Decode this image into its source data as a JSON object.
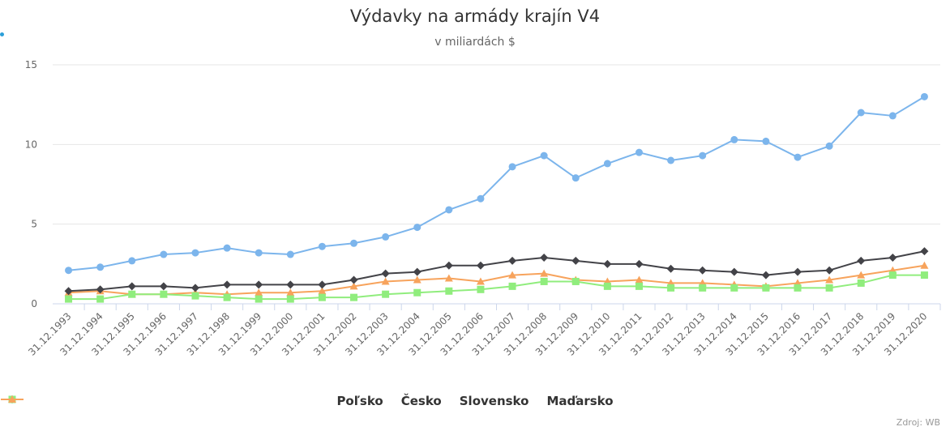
{
  "chart_data": {
    "type": "line",
    "title": "Výdavky na armády krajín V4",
    "subtitle": "v miliardách $",
    "categories": [
      "31.12.1993",
      "31.12.1994",
      "31.12.1995",
      "31.12.1996",
      "31.12.1997",
      "31.12.1998",
      "31.12.1999",
      "31.12.2000",
      "31.12.2001",
      "31.12.2002",
      "31.12.2003",
      "31.12.2004",
      "31.12.2005",
      "31.12.2006",
      "31.12.2007",
      "31.12.2008",
      "31.12.2009",
      "31.12.2010",
      "31.12.2011",
      "31.12.2012",
      "31.12.2013",
      "31.12.2014",
      "31.12.2015",
      "31.12.2016",
      "31.12.2017",
      "31.12.2018",
      "31.12.2019",
      "31.12.2020"
    ],
    "yticks": [
      "0",
      "5",
      "10",
      "15"
    ],
    "ylim": [
      0,
      15
    ],
    "grid": true,
    "legend_position": "bottom",
    "series": [
      {
        "name": "Poľsko",
        "color": "#7cb5ec",
        "marker": "circle",
        "values": [
          2.1,
          2.3,
          2.7,
          3.1,
          3.2,
          3.5,
          3.2,
          3.1,
          3.6,
          3.8,
          4.2,
          4.8,
          5.9,
          6.6,
          8.6,
          9.3,
          7.9,
          8.8,
          9.5,
          9.0,
          9.3,
          10.3,
          10.2,
          9.2,
          9.9,
          12.0,
          11.8,
          13.0
        ]
      },
      {
        "name": "Česko",
        "color": "#434348",
        "marker": "diamond",
        "values": [
          0.8,
          0.9,
          1.1,
          1.1,
          1.0,
          1.2,
          1.2,
          1.2,
          1.2,
          1.5,
          1.9,
          2.0,
          2.4,
          2.4,
          2.7,
          2.9,
          2.7,
          2.5,
          2.5,
          2.2,
          2.1,
          2.0,
          1.8,
          2.0,
          2.1,
          2.7,
          2.9,
          3.3
        ]
      },
      {
        "name": "Slovensko",
        "color": "#90ed7d",
        "marker": "square",
        "values": [
          0.3,
          0.3,
          0.6,
          0.6,
          0.5,
          0.4,
          0.3,
          0.3,
          0.4,
          0.4,
          0.6,
          0.7,
          0.8,
          0.9,
          1.1,
          1.4,
          1.4,
          1.1,
          1.1,
          1.0,
          1.0,
          1.0,
          1.0,
          1.0,
          1.0,
          1.3,
          1.8,
          1.8
        ]
      },
      {
        "name": "Maďarsko",
        "color": "#f7a35c",
        "marker": "triangle",
        "values": [
          0.7,
          0.8,
          0.6,
          0.6,
          0.7,
          0.6,
          0.7,
          0.7,
          0.8,
          1.1,
          1.4,
          1.5,
          1.6,
          1.4,
          1.8,
          1.9,
          1.5,
          1.4,
          1.5,
          1.3,
          1.3,
          1.2,
          1.1,
          1.3,
          1.5,
          1.8,
          2.1,
          2.4
        ]
      }
    ]
  },
  "source_label": "Zdroj: WB"
}
